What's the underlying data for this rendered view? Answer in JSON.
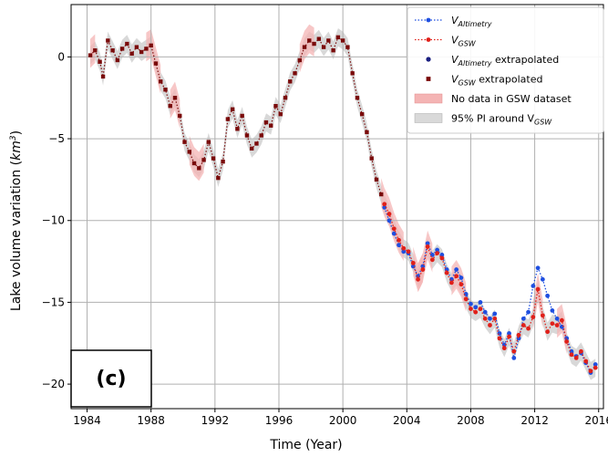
{
  "chart_data": {
    "type": "line",
    "xlabel": "Time (Year)",
    "ylabel_prefix": "Lake volume variation (",
    "ylabel_unit": "km",
    "ylabel_exp": "3",
    "ylabel_suffix": ")",
    "xlim": [
      1983,
      2016.3
    ],
    "ylim": [
      -21.5,
      3.2
    ],
    "xticks": [
      1984,
      1988,
      1992,
      1996,
      2000,
      2004,
      2008,
      2012,
      2016
    ],
    "yticks": [
      0,
      -5,
      -10,
      -15,
      -20
    ],
    "ytick_labels": [
      "0",
      "−5",
      "−10",
      "−15",
      "−20"
    ],
    "grid": true,
    "legend_placement": "top-right",
    "panel_label": "(c)",
    "colors": {
      "altimetry": "#1f4fe0",
      "gsw": "#e0201a",
      "altimetry_extrap": "#1a1f80",
      "gsw_extrap": "#7a0a0a",
      "no_data_band": "#f4b4b4",
      "pi_band": "#c8c8c8"
    },
    "legend": [
      {
        "main": "V",
        "sub": "Altimetry",
        "rest": "",
        "style": "line-altimetry"
      },
      {
        "main": "V",
        "sub": "GSW",
        "rest": "",
        "style": "line-gsw"
      },
      {
        "main": "V",
        "sub": "Altimetry",
        "rest": " extrapolated",
        "style": "dot-extrap"
      },
      {
        "main": "V",
        "sub": "GSW",
        "rest": " extrapolated",
        "style": "square-extrap"
      },
      {
        "main": "No data in GSW dataset",
        "sub": "",
        "rest": "",
        "style": "band-nodata"
      },
      {
        "main": "95% PI around V",
        "sub": "GSW",
        "rest": "",
        "style": "band-pi"
      }
    ],
    "series": [
      {
        "name": "V_GSW extrapolated",
        "x": [
          1984.2,
          1984.5,
          1984.8,
          1985.0,
          1985.3,
          1985.6,
          1985.9,
          1986.2,
          1986.5,
          1986.8,
          1987.1,
          1987.4,
          1987.7,
          1988.0,
          1988.3,
          1988.6,
          1988.9,
          1989.2,
          1989.5,
          1989.8,
          1990.1,
          1990.4,
          1990.7,
          1991.0,
          1991.3,
          1991.6,
          1991.9,
          1992.2,
          1992.5,
          1992.8,
          1993.1,
          1993.4,
          1993.7,
          1994.0,
          1994.3,
          1994.6,
          1994.9,
          1995.2,
          1995.5,
          1995.8,
          1996.1,
          1996.4,
          1996.7,
          1997.0,
          1997.3,
          1997.6,
          1997.9,
          1998.2,
          1998.5,
          1998.8,
          1999.1,
          1999.4,
          1999.7,
          2000.0,
          2000.3,
          2000.6,
          2000.9,
          2001.2,
          2001.5,
          2001.8,
          2002.1,
          2002.4
        ],
        "y": [
          0.1,
          0.4,
          -0.3,
          -1.2,
          1.0,
          0.4,
          -0.2,
          0.5,
          0.8,
          0.2,
          0.6,
          0.3,
          0.5,
          0.7,
          -0.4,
          -1.5,
          -2.0,
          -3.0,
          -2.5,
          -3.6,
          -5.2,
          -5.8,
          -6.5,
          -6.8,
          -6.3,
          -5.2,
          -6.2,
          -7.4,
          -6.4,
          -3.8,
          -3.2,
          -4.4,
          -3.6,
          -4.8,
          -5.6,
          -5.3,
          -4.8,
          -4.0,
          -4.2,
          -3.0,
          -3.5,
          -2.5,
          -1.5,
          -1.0,
          -0.2,
          0.6,
          1.0,
          0.8,
          1.1,
          0.6,
          1.0,
          0.4,
          1.2,
          1.0,
          0.6,
          -1.0,
          -2.5,
          -3.5,
          -4.6,
          -6.2,
          -7.5,
          -8.4
        ]
      },
      {
        "name": "V_GSW",
        "x": [
          2002.6,
          2002.9,
          2003.2,
          2003.5,
          2003.8,
          2004.1,
          2004.4,
          2004.7,
          2005.0,
          2005.3,
          2005.6,
          2005.9,
          2006.2,
          2006.5,
          2006.8,
          2007.1,
          2007.4,
          2007.7,
          2008.0,
          2008.3,
          2008.6,
          2008.9,
          2009.2,
          2009.5,
          2009.8,
          2010.1,
          2010.4,
          2010.7,
          2011.0,
          2011.3,
          2011.6,
          2011.9,
          2012.2,
          2012.5,
          2012.8,
          2013.1,
          2013.4,
          2013.7,
          2014.0,
          2014.3,
          2014.6,
          2014.9,
          2015.2,
          2015.5,
          2015.8
        ],
        "y": [
          -9.0,
          -9.6,
          -10.5,
          -11.2,
          -11.7,
          -11.9,
          -12.6,
          -13.6,
          -13.0,
          -11.6,
          -12.4,
          -12.0,
          -12.3,
          -13.2,
          -13.8,
          -13.4,
          -13.9,
          -14.8,
          -15.4,
          -15.6,
          -15.4,
          -16.0,
          -16.4,
          -16.0,
          -17.2,
          -17.8,
          -17.1,
          -18.0,
          -17.0,
          -16.4,
          -16.6,
          -15.9,
          -14.2,
          -15.8,
          -16.8,
          -16.3,
          -16.4,
          -16.1,
          -17.4,
          -18.2,
          -18.4,
          -18.0,
          -18.6,
          -19.2,
          -19.0
        ]
      },
      {
        "name": "V_Altimetry",
        "x": [
          2002.6,
          2002.9,
          2003.2,
          2003.5,
          2003.8,
          2004.1,
          2004.4,
          2004.7,
          2005.0,
          2005.3,
          2005.6,
          2005.9,
          2006.2,
          2006.5,
          2006.8,
          2007.1,
          2007.4,
          2007.7,
          2008.0,
          2008.3,
          2008.6,
          2008.9,
          2009.2,
          2009.5,
          2009.8,
          2010.1,
          2010.4,
          2010.7,
          2011.0,
          2011.3,
          2011.6,
          2011.9,
          2012.2,
          2012.5,
          2012.8,
          2013.1,
          2013.4,
          2013.7,
          2014.0,
          2014.3,
          2014.6,
          2014.9,
          2015.2,
          2015.5,
          2015.8
        ],
        "y": [
          -9.2,
          -10.0,
          -10.8,
          -11.5,
          -11.9,
          -12.0,
          -12.8,
          -13.4,
          -12.8,
          -11.4,
          -12.1,
          -11.8,
          -12.1,
          -13.0,
          -13.6,
          -13.0,
          -13.5,
          -14.5,
          -15.1,
          -15.3,
          -15.0,
          -15.6,
          -16.0,
          -15.7,
          -16.9,
          -17.6,
          -16.9,
          -18.4,
          -17.2,
          -16.0,
          -15.6,
          -14.0,
          -12.9,
          -13.6,
          -14.6,
          -15.5,
          -16.0,
          -16.5,
          -17.2,
          -18.0,
          -18.3,
          -18.1,
          -18.7,
          -19.3,
          -18.8
        ]
      }
    ],
    "bands": {
      "nodata": [
        [
          1984.0,
          1984.3
        ],
        [
          1988.0,
          1988.3
        ],
        [
          1989.4,
          1989.7
        ],
        [
          1990.7,
          1991.0
        ],
        [
          1997.6,
          1997.9
        ],
        [
          2002.6,
          2002.9
        ],
        [
          2003.4,
          2003.7
        ],
        [
          2004.4,
          2004.7
        ],
        [
          2005.0,
          2005.3
        ],
        [
          2007.1,
          2007.4
        ],
        [
          2011.9,
          2012.2
        ],
        [
          2013.4,
          2013.7
        ]
      ],
      "pi_halfwidth": 0.55
    }
  }
}
